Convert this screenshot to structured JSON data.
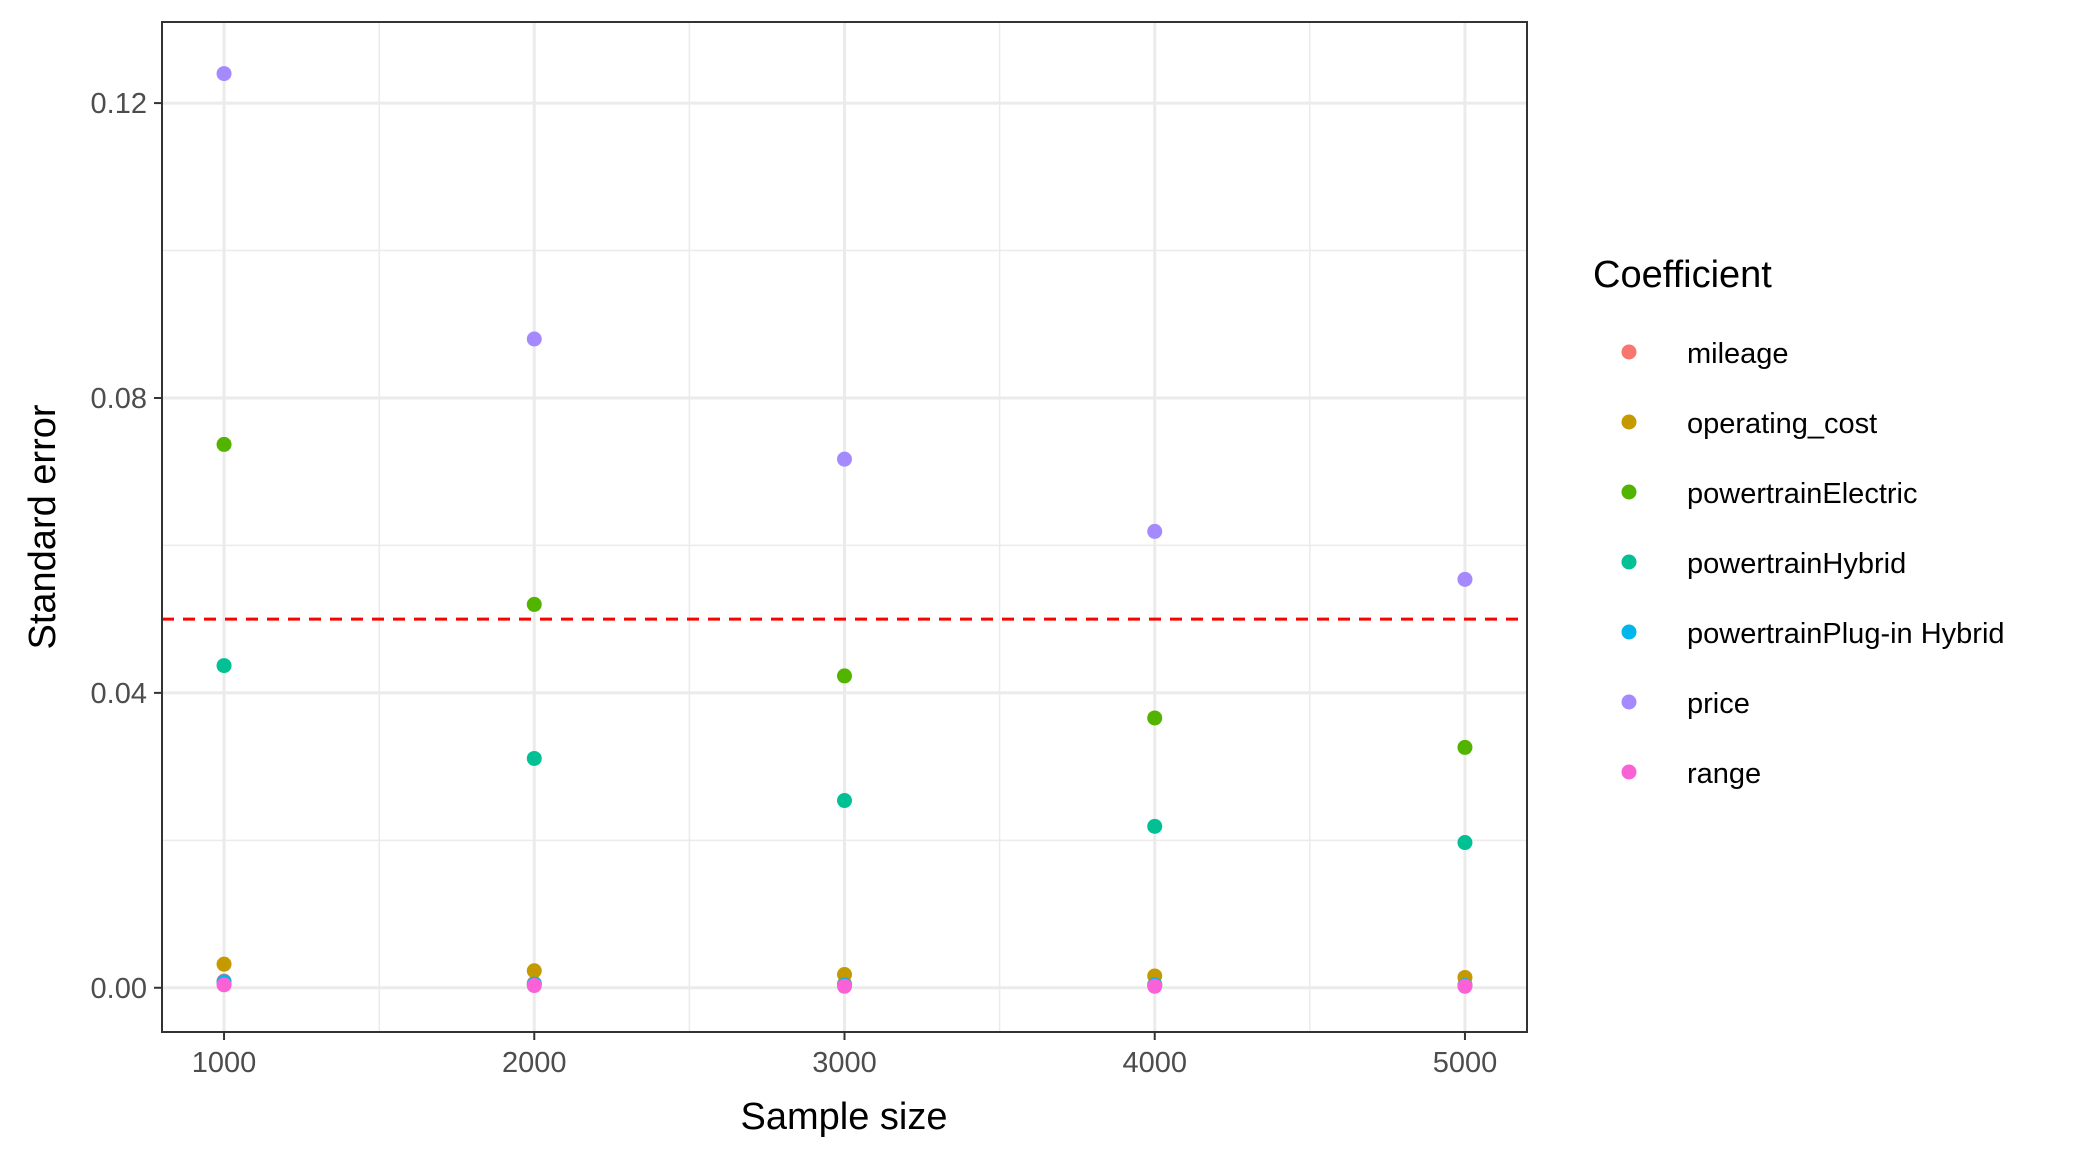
{
  "chart_data": {
    "type": "scatter",
    "xlabel": "Sample size",
    "ylabel": "Standard error",
    "xlim": [
      800,
      5200
    ],
    "ylim": [
      -0.006,
      0.131
    ],
    "x_ticks": [
      1000,
      2000,
      3000,
      4000,
      5000
    ],
    "x_tick_labels": [
      "1000",
      "2000",
      "3000",
      "4000",
      "5000"
    ],
    "x_minor_ticks": [
      1500,
      2500,
      3500,
      4500
    ],
    "y_ticks": [
      0,
      0.04,
      0.08,
      0.12
    ],
    "y_tick_labels": [
      "0.00",
      "0.04",
      "0.08",
      "0.12"
    ],
    "y_minor_ticks": [
      0.02,
      0.06,
      0.1
    ],
    "grid": true,
    "reference_line": {
      "y": 0.05,
      "color": "#ff0000",
      "style": "dashed"
    },
    "legend": {
      "title": "Coefficient",
      "position": "right"
    },
    "series": [
      {
        "name": "mileage",
        "color": "#F8766D",
        "x": [
          1000,
          2000,
          3000,
          4000,
          5000
        ],
        "y": [
          0.0009,
          0.0006,
          0.0005,
          0.0004,
          0.0004
        ]
      },
      {
        "name": "operating_cost",
        "color": "#C49A00",
        "x": [
          1000,
          2000,
          3000,
          4000,
          5000
        ],
        "y": [
          0.0032,
          0.0023,
          0.0018,
          0.0016,
          0.0014
        ]
      },
      {
        "name": "powertrainElectric",
        "color": "#53B400",
        "x": [
          1000,
          2000,
          3000,
          4000,
          5000
        ],
        "y": [
          0.0737,
          0.052,
          0.0423,
          0.0366,
          0.0326
        ]
      },
      {
        "name": "powertrainHybrid",
        "color": "#00C094",
        "x": [
          1000,
          2000,
          3000,
          4000,
          5000
        ],
        "y": [
          0.0437,
          0.0311,
          0.0254,
          0.0219,
          0.0197
        ]
      },
      {
        "name": "powertrainPlug-in Hybrid",
        "color": "#00B6EB",
        "x": [
          1000,
          2000,
          3000,
          4000,
          5000
        ],
        "y": [
          0.0008,
          0.0005,
          0.0004,
          0.0004,
          0.0003
        ]
      },
      {
        "name": "price",
        "color": "#A58AFF",
        "x": [
          1000,
          2000,
          3000,
          4000,
          5000
        ],
        "y": [
          0.124,
          0.088,
          0.0717,
          0.0619,
          0.0554
        ]
      },
      {
        "name": "range",
        "color": "#FB61D7",
        "x": [
          1000,
          2000,
          3000,
          4000,
          5000
        ],
        "y": [
          0.0004,
          0.0003,
          0.0002,
          0.0002,
          0.0002
        ]
      }
    ]
  }
}
